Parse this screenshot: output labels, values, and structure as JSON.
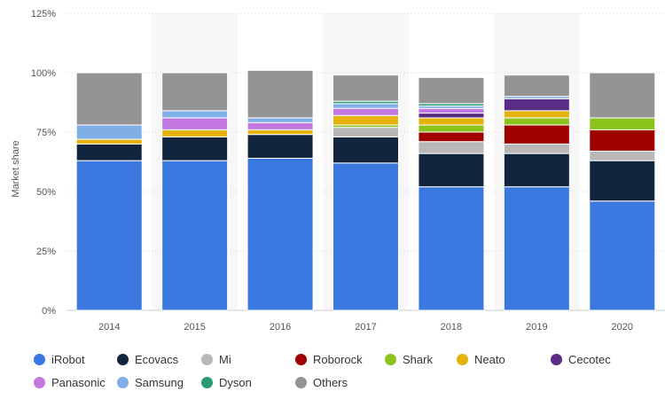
{
  "chart_data": {
    "type": "bar",
    "stacked": true,
    "title": "",
    "xlabel": "",
    "ylabel": "Market share",
    "ylim": [
      0,
      125
    ],
    "yticks": [
      "0%",
      "25%",
      "50%",
      "75%",
      "100%",
      "125%"
    ],
    "categories": [
      "2014",
      "2015",
      "2016",
      "2017",
      "2018",
      "2019",
      "2020"
    ],
    "series": [
      {
        "name": "iRobot",
        "color": "#3b78e0",
        "values": [
          63,
          63,
          64,
          62,
          52,
          52,
          46
        ]
      },
      {
        "name": "Ecovacs",
        "color": "#11253f",
        "values": [
          7,
          10,
          10,
          11,
          14,
          14,
          17
        ]
      },
      {
        "name": "Mi",
        "color": "#b8b8b8",
        "values": [
          0,
          0,
          0,
          4,
          5,
          4,
          4
        ]
      },
      {
        "name": "Roborock",
        "color": "#a00000",
        "values": [
          0,
          0,
          0,
          0,
          4,
          8,
          9
        ]
      },
      {
        "name": "Shark",
        "color": "#8cc21c",
        "values": [
          0,
          0,
          0,
          1,
          3,
          3,
          5
        ]
      },
      {
        "name": "Neato",
        "color": "#e6b30c",
        "values": [
          2,
          3,
          2,
          4,
          3,
          3,
          0
        ]
      },
      {
        "name": "Cecotec",
        "color": "#5a2c86",
        "values": [
          0,
          0,
          0,
          0,
          2,
          5,
          0
        ]
      },
      {
        "name": "Panasonic",
        "color": "#c176e0",
        "values": [
          0,
          5,
          3,
          3,
          2,
          0,
          0
        ]
      },
      {
        "name": "Samsung",
        "color": "#80aee6",
        "values": [
          6,
          3,
          2,
          2,
          1,
          1,
          0
        ]
      },
      {
        "name": "Dyson",
        "color": "#2a9a75",
        "values": [
          0,
          0,
          0,
          1,
          1,
          0,
          0
        ]
      },
      {
        "name": "Others",
        "color": "#949494",
        "values": [
          22,
          16,
          20,
          11,
          11,
          9,
          19
        ]
      }
    ],
    "legend_position": "bottom",
    "grid": true
  }
}
